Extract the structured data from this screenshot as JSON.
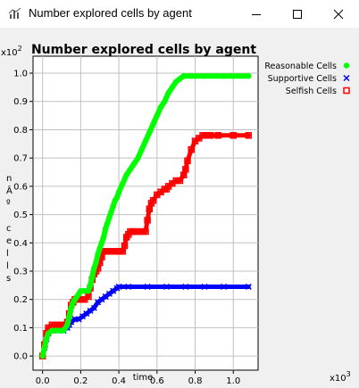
{
  "window": {
    "title": "Number explored cells by agent",
    "icon": "chart-app-icon",
    "controls": [
      "minimize-icon",
      "maximize-icon",
      "close-icon"
    ]
  },
  "chart_data": {
    "type": "scatter",
    "title": "Number explored cells by agent",
    "xlabel": "time",
    "ylabel": "nÂº cells",
    "x_multiplier_label": "x10",
    "x_multiplier_exp": "3",
    "y_multiplier_label": "x10",
    "y_multiplier_exp": "2",
    "xlim": [
      -0.05,
      1.13
    ],
    "ylim": [
      -0.05,
      1.06
    ],
    "x_ticks": [
      "0.0",
      "0.2",
      "0.4",
      "0.6",
      "0.8",
      "1.0"
    ],
    "x_tick_values": [
      0.0,
      0.2,
      0.4,
      0.6,
      0.8,
      1.0
    ],
    "y_ticks": [
      "0.0",
      "0.1",
      "0.2",
      "0.3",
      "0.4",
      "0.5",
      "0.6",
      "0.7",
      "0.8",
      "0.9",
      "1.0"
    ],
    "y_tick_values": [
      0.0,
      0.1,
      0.2,
      0.3,
      0.4,
      0.5,
      0.6,
      0.7,
      0.8,
      0.9,
      1.0
    ],
    "grid": true,
    "legend_position": "right",
    "series": [
      {
        "name": "Reasonable Cells",
        "color": "#00ff00",
        "marker": "dot",
        "x": [
          0.0,
          0.01,
          0.02,
          0.03,
          0.05,
          0.08,
          0.11,
          0.13,
          0.14,
          0.15,
          0.16,
          0.17,
          0.18,
          0.19,
          0.2,
          0.22,
          0.24,
          0.25,
          0.26,
          0.27,
          0.28,
          0.29,
          0.3,
          0.31,
          0.32,
          0.33,
          0.34,
          0.35,
          0.36,
          0.37,
          0.38,
          0.39,
          0.4,
          0.42,
          0.44,
          0.46,
          0.48,
          0.5,
          0.52,
          0.54,
          0.56,
          0.58,
          0.6,
          0.62,
          0.64,
          0.66,
          0.68,
          0.7,
          0.72,
          0.74,
          0.78,
          0.85,
          0.95,
          1.08
        ],
        "y": [
          0.0,
          0.03,
          0.06,
          0.08,
          0.09,
          0.09,
          0.09,
          0.11,
          0.14,
          0.17,
          0.19,
          0.2,
          0.21,
          0.22,
          0.23,
          0.23,
          0.23,
          0.25,
          0.28,
          0.31,
          0.33,
          0.36,
          0.38,
          0.4,
          0.42,
          0.45,
          0.47,
          0.49,
          0.51,
          0.53,
          0.55,
          0.56,
          0.58,
          0.61,
          0.64,
          0.66,
          0.68,
          0.7,
          0.73,
          0.76,
          0.79,
          0.82,
          0.85,
          0.88,
          0.9,
          0.93,
          0.95,
          0.97,
          0.98,
          0.99,
          0.99,
          0.99,
          0.99,
          0.99
        ]
      },
      {
        "name": "Supportive Cells",
        "color": "#0000ff",
        "marker": "x",
        "x": [
          0.0,
          0.01,
          0.02,
          0.03,
          0.05,
          0.08,
          0.11,
          0.13,
          0.14,
          0.15,
          0.17,
          0.19,
          0.21,
          0.23,
          0.25,
          0.27,
          0.29,
          0.31,
          0.33,
          0.35,
          0.37,
          0.39,
          0.4,
          0.45,
          0.55,
          0.65,
          0.75,
          0.85,
          0.95,
          1.08
        ],
        "y": [
          0.0,
          0.03,
          0.06,
          0.08,
          0.09,
          0.09,
          0.09,
          0.1,
          0.11,
          0.12,
          0.13,
          0.13,
          0.14,
          0.15,
          0.16,
          0.17,
          0.19,
          0.2,
          0.21,
          0.22,
          0.23,
          0.24,
          0.245,
          0.245,
          0.245,
          0.245,
          0.245,
          0.245,
          0.245,
          0.245
        ]
      },
      {
        "name": "Selfish Cells",
        "color": "#ff0000",
        "marker": "square",
        "x": [
          0.0,
          0.01,
          0.02,
          0.03,
          0.05,
          0.08,
          0.11,
          0.13,
          0.14,
          0.15,
          0.16,
          0.17,
          0.18,
          0.2,
          0.22,
          0.24,
          0.25,
          0.26,
          0.27,
          0.28,
          0.29,
          0.3,
          0.31,
          0.32,
          0.34,
          0.36,
          0.38,
          0.4,
          0.42,
          0.43,
          0.44,
          0.45,
          0.46,
          0.47,
          0.48,
          0.5,
          0.52,
          0.54,
          0.55,
          0.56,
          0.57,
          0.58,
          0.6,
          0.62,
          0.64,
          0.65,
          0.66,
          0.68,
          0.7,
          0.72,
          0.74,
          0.75,
          0.76,
          0.78,
          0.8,
          0.82,
          0.84,
          0.86,
          0.88,
          0.92,
          1.0,
          1.08
        ],
        "y": [
          0.0,
          0.04,
          0.08,
          0.1,
          0.11,
          0.11,
          0.11,
          0.12,
          0.15,
          0.18,
          0.19,
          0.2,
          0.2,
          0.2,
          0.2,
          0.21,
          0.24,
          0.27,
          0.29,
          0.3,
          0.31,
          0.33,
          0.35,
          0.37,
          0.37,
          0.37,
          0.37,
          0.37,
          0.37,
          0.39,
          0.42,
          0.43,
          0.44,
          0.44,
          0.44,
          0.44,
          0.44,
          0.44,
          0.48,
          0.52,
          0.54,
          0.55,
          0.57,
          0.58,
          0.59,
          0.59,
          0.6,
          0.61,
          0.62,
          0.62,
          0.64,
          0.66,
          0.69,
          0.73,
          0.76,
          0.77,
          0.78,
          0.78,
          0.78,
          0.78,
          0.78,
          0.78
        ]
      }
    ]
  }
}
